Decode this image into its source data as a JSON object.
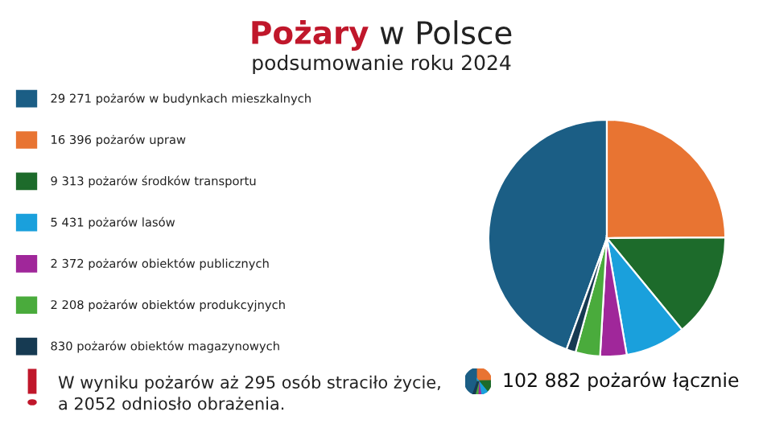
{
  "chart_data": {
    "type": "pie",
    "title": "Pożary w Polsce",
    "subtitle": "podsumowanie roku 2024",
    "categories": [
      "pożarów w budynkach mieszkalnych",
      "pożarów upraw",
      "pożarów środków transportu",
      "pożarów lasów",
      "pożarów obiektów publicznych",
      "pożarów obiektów produkcyjnych",
      "pożarów obiektów magazynowych"
    ],
    "values": [
      29271,
      16396,
      9313,
      5431,
      2372,
      2208,
      830
    ],
    "value_labels": [
      "29 271",
      "16 396",
      "9 313",
      "5 431",
      "2 372",
      "2 208",
      "830"
    ],
    "colors": [
      "#1b5e85",
      "#e87432",
      "#1d6b2b",
      "#1aa0dc",
      "#a0279a",
      "#4aab3c",
      "#163a52"
    ],
    "legend": "left",
    "annotations": [
      "W wyniku pożarów aż 295 osób straciło życie, a 2052 odniosło obrażenia.",
      "102 882 pożarów łącznie"
    ]
  }
}
